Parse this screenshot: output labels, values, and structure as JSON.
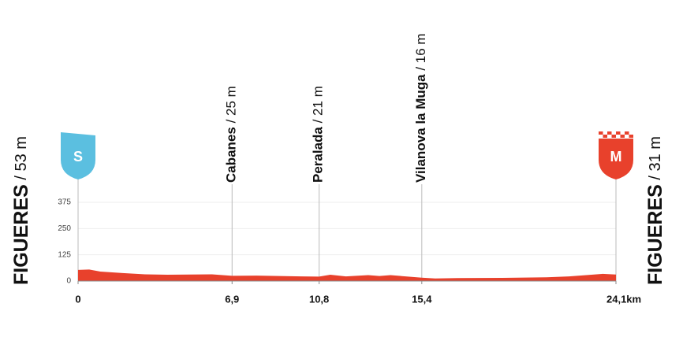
{
  "chart_data": {
    "type": "area",
    "x": [
      0,
      0.5,
      1,
      2,
      3,
      4,
      5,
      6,
      6.9,
      8,
      9,
      10,
      10.8,
      11.3,
      12,
      13,
      13.5,
      14,
      15.4,
      16,
      17,
      19,
      21,
      22,
      23,
      23.5,
      24.1
    ],
    "values": [
      53,
      55,
      45,
      38,
      32,
      30,
      31,
      32,
      25,
      26,
      24,
      22,
      21,
      30,
      22,
      28,
      24,
      28,
      16,
      12,
      14,
      15,
      18,
      22,
      30,
      34,
      31
    ],
    "color": "#e8412c",
    "xlim": [
      0,
      24.1
    ],
    "xticks": [
      0,
      {
        "value": 6.9,
        "label": "6,9"
      },
      {
        "value": 10.8,
        "label": "10,8"
      },
      {
        "value": 15.4,
        "label": "15,4"
      },
      {
        "value": 24.1,
        "label": "24,1km"
      }
    ],
    "ylim": [
      0,
      375
    ],
    "yticks": [
      0,
      125,
      250,
      375
    ],
    "grid": true,
    "start": {
      "name": "FIGUERES",
      "altitude": " / 53 m",
      "icon": "S",
      "color": "#5bbfe0"
    },
    "finish": {
      "name": "FIGUERES",
      "altitude": " / 31 m",
      "icon": "M",
      "color": "#e8412c"
    },
    "waypoints": [
      {
        "name": "Cabanes",
        "altitude": " / 25 m",
        "km": 6.9
      },
      {
        "name": "Peralada",
        "altitude": " / 21 m",
        "km": 10.8
      },
      {
        "name": "Vilanova la Muga",
        "altitude": " / 16 m",
        "km": 15.4
      }
    ]
  }
}
